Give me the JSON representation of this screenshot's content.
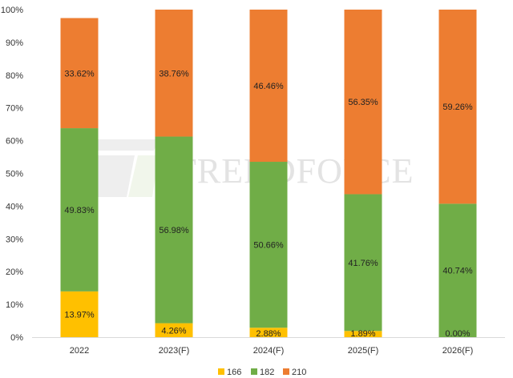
{
  "chart_data": {
    "type": "bar",
    "stacked": true,
    "categories": [
      "2022",
      "2023(F)",
      "2024(F)",
      "2025(F)",
      "2026(F)"
    ],
    "series": [
      {
        "name": "166",
        "color": "#FFC000",
        "values": [
          13.97,
          4.26,
          2.88,
          1.89,
          0.0
        ],
        "labels": [
          "13.97%",
          "4.26%",
          "2.88%",
          "1.89%",
          "0.00%"
        ]
      },
      {
        "name": "182",
        "color": "#70AD47",
        "values": [
          49.83,
          56.98,
          50.66,
          41.76,
          40.74
        ],
        "labels": [
          "49.83%",
          "56.98%",
          "50.66%",
          "41.76%",
          "40.74%"
        ]
      },
      {
        "name": "210",
        "color": "#ED7D31",
        "values": [
          33.62,
          38.76,
          46.46,
          56.35,
          59.26
        ],
        "labels": [
          "33.62%",
          "38.76%",
          "46.46%",
          "56.35%",
          "59.26%"
        ]
      }
    ],
    "ylim": [
      0,
      100
    ],
    "yticks": [
      "0%",
      "10%",
      "20%",
      "30%",
      "40%",
      "50%",
      "60%",
      "70%",
      "80%",
      "90%",
      "100%"
    ],
    "legend_position": "bottom",
    "grid": false,
    "watermark": "TRENDFORCE"
  }
}
